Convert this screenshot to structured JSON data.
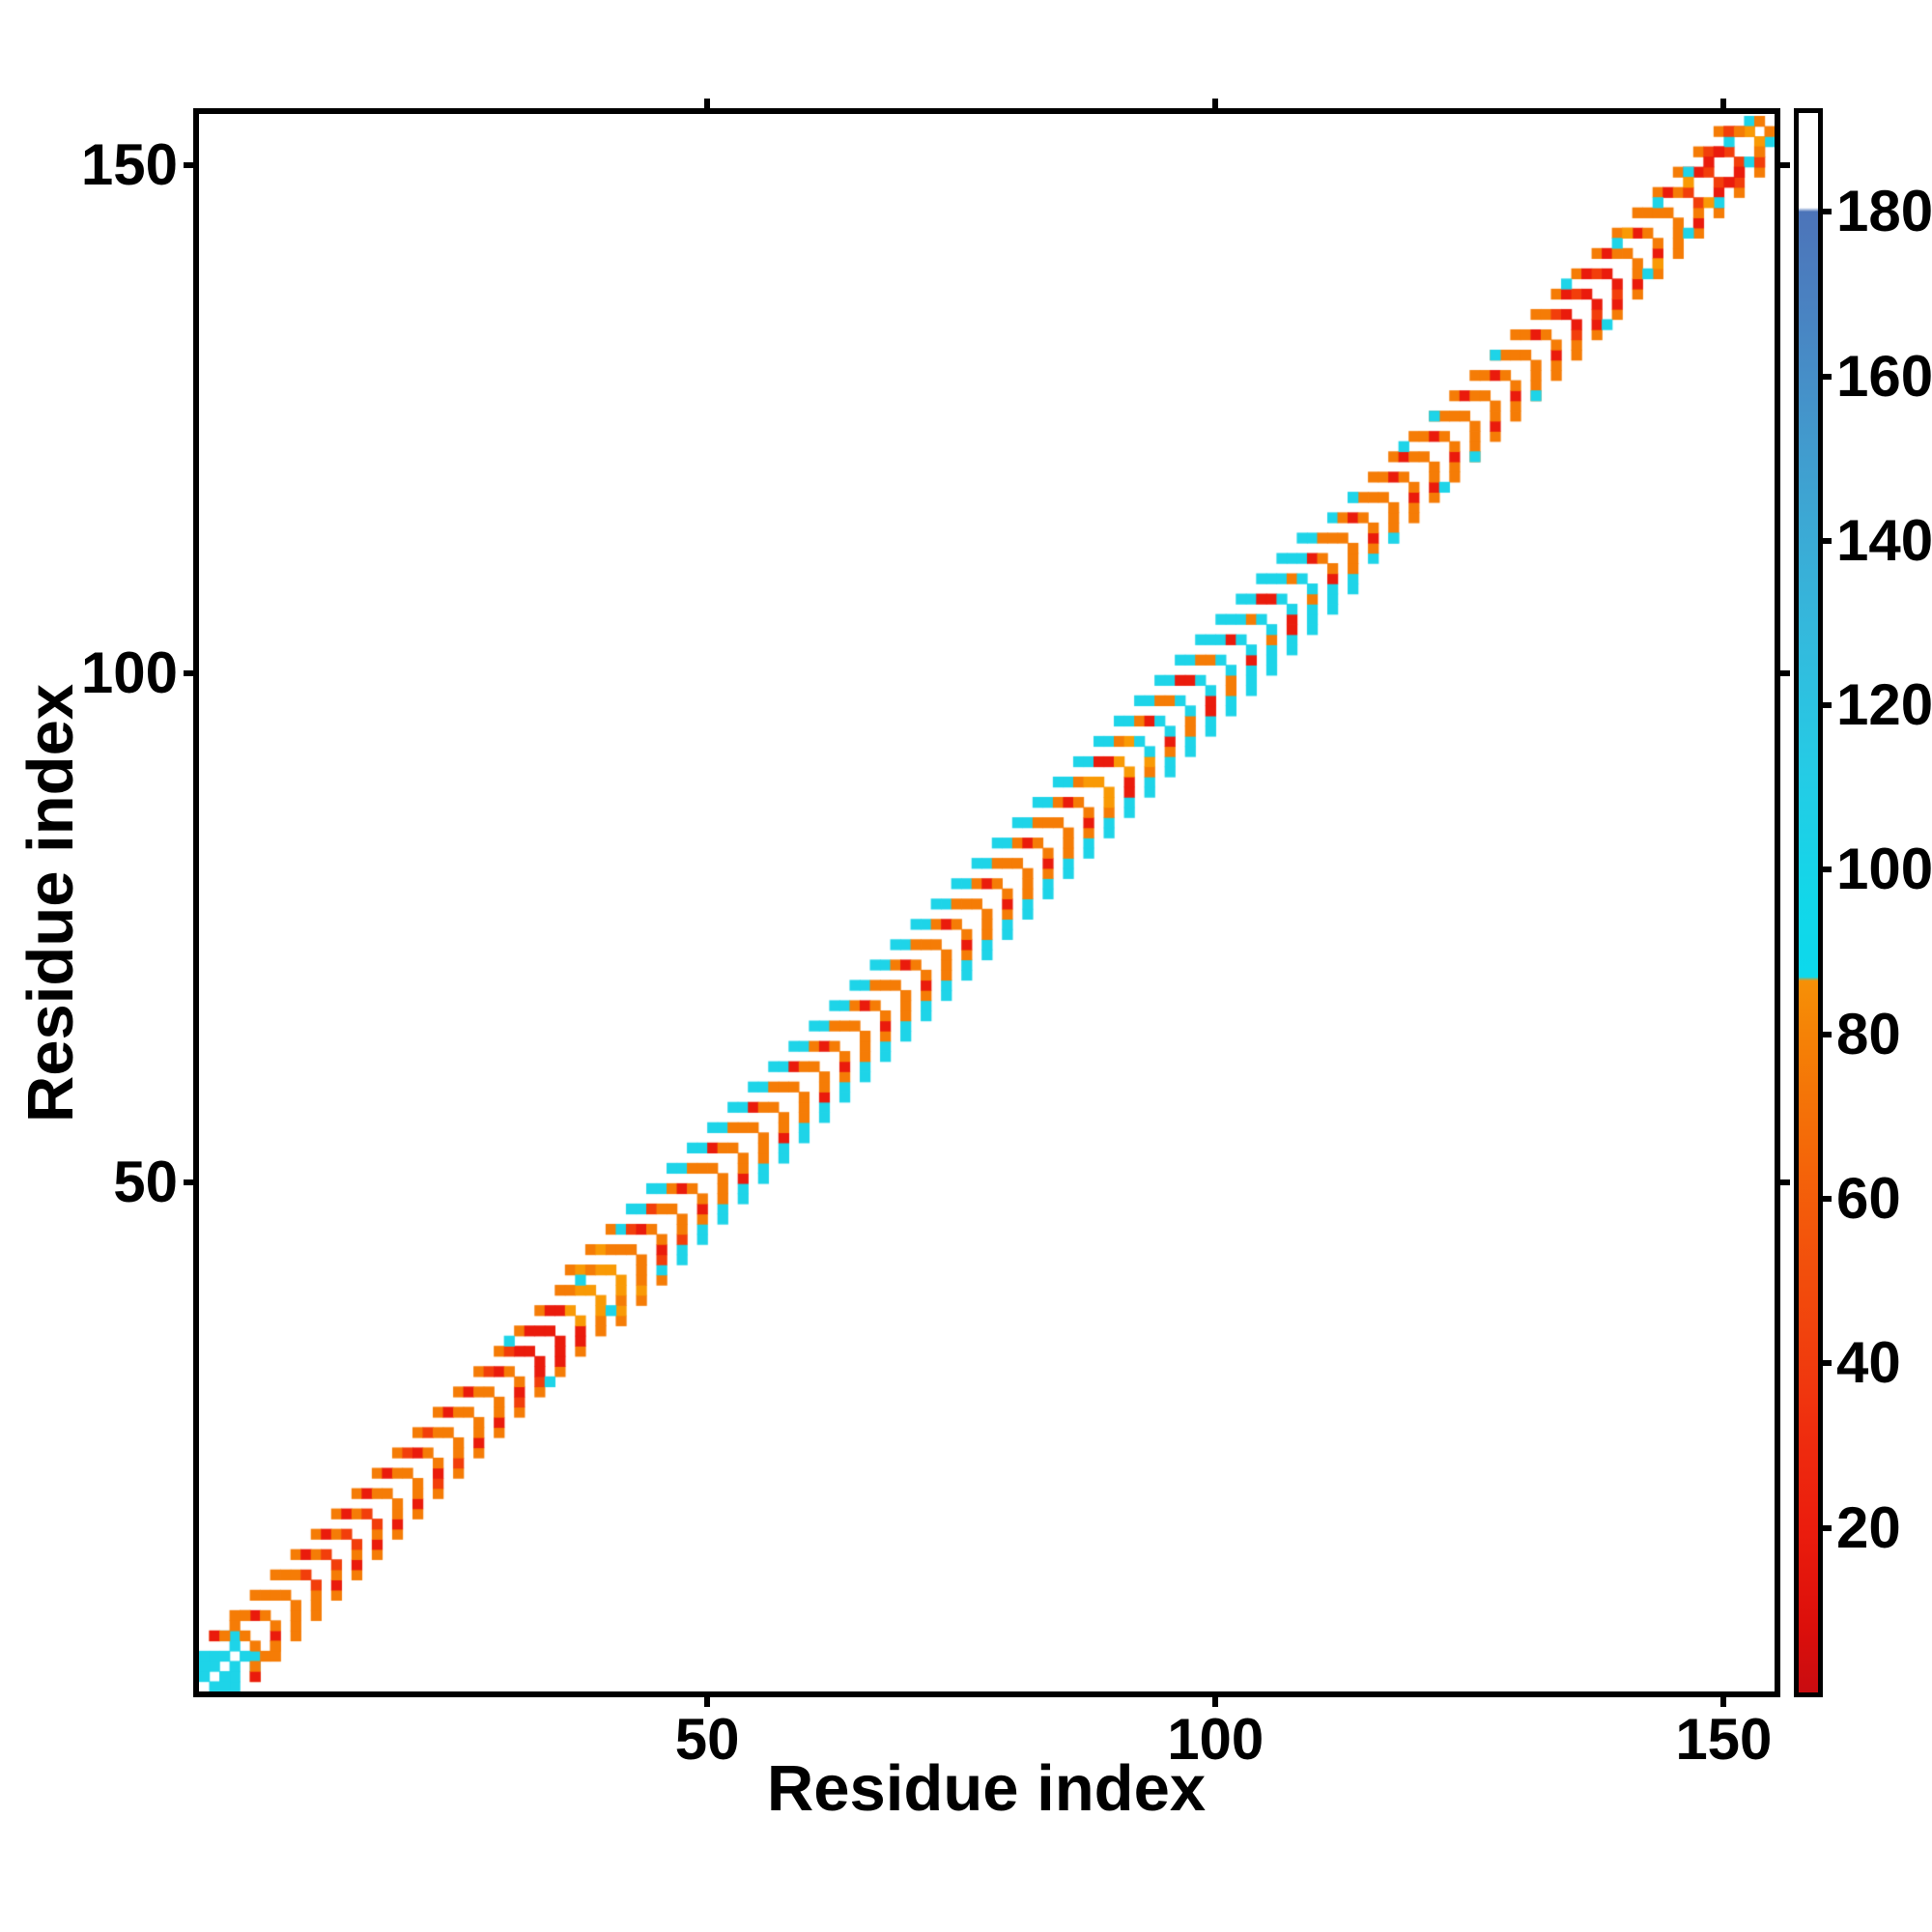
{
  "figure": {
    "x_axis_title": "Residue index",
    "y_axis_title": "Residue index",
    "background_color": "#ffffff",
    "spine_color": "#000000"
  },
  "axes": {
    "x": {
      "min": 0,
      "max": 155,
      "ticks": [
        50,
        100,
        150
      ]
    },
    "y": {
      "min": 0,
      "max": 155,
      "ticks": [
        50,
        100,
        150
      ]
    }
  },
  "colorbar": {
    "min": 0,
    "max": 192,
    "ticks": [
      20,
      40,
      60,
      80,
      100,
      120,
      140,
      160,
      180
    ],
    "stops": [
      [
        0,
        "#c90c10"
      ],
      [
        8,
        "#dc0f0b"
      ],
      [
        20,
        "#eb1d0d"
      ],
      [
        32,
        "#ef2e0e"
      ],
      [
        44,
        "#f1430d"
      ],
      [
        56,
        "#f3560b"
      ],
      [
        68,
        "#f46c08"
      ],
      [
        80,
        "#f58206"
      ],
      [
        86.5,
        "#f69007"
      ],
      [
        87,
        "#0cd9ec"
      ],
      [
        96,
        "#12d7e9"
      ],
      [
        112,
        "#25cbe5"
      ],
      [
        128,
        "#33badd"
      ],
      [
        144,
        "#3da6d3"
      ],
      [
        158,
        "#4591c9"
      ],
      [
        170,
        "#4a80c0"
      ],
      [
        180,
        "#4c74b9"
      ],
      [
        180.5,
        "#ffffff"
      ],
      [
        192,
        "#ffffff"
      ]
    ]
  },
  "chart_data": {
    "type": "heatmap",
    "title": "",
    "xlabel": "Residue index",
    "ylabel": "Residue index",
    "xlim": [
      0,
      155
    ],
    "ylim": [
      0,
      155
    ],
    "n_residues": 155,
    "description": "Symmetric residue-residue contact map: a woven near-diagonal band of cells (sequence separation 1-5) colored by contact value; white elsewhere. Checkerboard holes along the main diagonal.",
    "palette": {
      "red": "#ea1b0c",
      "redorange": "#f23e0b",
      "orange": "#f57c06",
      "amber": "#f99a05",
      "cyan": "#1ed4e8"
    },
    "band": {
      "segments": [
        {
          "f": 0,
          "t": 4,
          "L1": null,
          "L2": "cyan",
          "L3": "cyan",
          "L4": "orange",
          "L5": null
        },
        {
          "f": 4,
          "t": 9,
          "L1": "orange",
          "L2": "orange",
          "L3": "orange",
          "L4": "orange",
          "L5": null
        },
        {
          "f": 9,
          "t": 17,
          "L1": "redorange",
          "L2": "orange",
          "L3": "redorange",
          "L4": "orange",
          "L5": null
        },
        {
          "f": 17,
          "t": 31,
          "L1": "orange",
          "L2": "orange",
          "L3": "redorange",
          "L4": "orange",
          "L5": null
        },
        {
          "f": 31,
          "t": 36,
          "L1": "red",
          "L2": "redorange",
          "L3": "red",
          "L4": "orange",
          "L5": null
        },
        {
          "f": 36,
          "t": 41,
          "L1": "amber",
          "L2": "amber",
          "L3": "orange",
          "L4": "amber",
          "L5": "orange"
        },
        {
          "f": 41,
          "t": 46,
          "L1": "orange",
          "L2": "orange",
          "L3": "redorange",
          "L4": "cyan",
          "L5": "cyan"
        },
        {
          "f": 46,
          "t": 87,
          "L1": "orange",
          "L2": "orange",
          "L3": "orange",
          "L4": "cyan",
          "L5": "cyan"
        },
        {
          "f": 87,
          "t": 92,
          "L1": "amber",
          "L2": "amber",
          "L3": "orange",
          "L4": "cyan",
          "L5": "cyan"
        },
        {
          "f": 92,
          "t": 100,
          "L1": "cyan",
          "L2": "orange",
          "L3": "orange",
          "L4": "cyan",
          "L5": "cyan"
        },
        {
          "f": 100,
          "t": 110,
          "L1": "cyan",
          "L2": "orange",
          "L3": "cyan",
          "L4": "cyan",
          "L5": "cyan"
        },
        {
          "f": 110,
          "t": 115,
          "L1": "orange",
          "L2": "orange",
          "L3": "orange",
          "L4": "cyan",
          "L5": null
        },
        {
          "f": 115,
          "t": 126,
          "L1": "orange",
          "L2": "orange",
          "L3": "orange",
          "L4": "orange",
          "L5": null
        },
        {
          "f": 126,
          "t": 133,
          "L1": "orange",
          "L2": "orange",
          "L3": "orange",
          "L4": "orange",
          "L5": null
        },
        {
          "f": 133,
          "t": 139,
          "L1": "red",
          "L2": "redorange",
          "L3": "red",
          "L4": "orange",
          "L5": null
        },
        {
          "f": 139,
          "t": 146,
          "L1": "orange",
          "L2": "orange",
          "L3": "orange",
          "L4": "orange",
          "L5": null
        },
        {
          "f": 146,
          "t": 152,
          "L1": "redorange",
          "L2": "red",
          "L3": "redorange",
          "L4": "orange",
          "L5": null
        },
        {
          "f": 152,
          "t": 154,
          "L1": "orange",
          "L2": "orange",
          "L3": null,
          "L4": null,
          "L5": null
        }
      ],
      "red_accents": [
        5,
        10,
        12,
        14,
        16,
        18,
        21,
        24,
        26,
        29,
        31,
        33,
        35,
        43,
        47,
        50,
        54,
        58,
        61,
        65,
        69,
        73,
        77,
        81,
        85,
        88,
        89,
        93,
        96,
        97,
        101,
        104,
        105,
        109,
        113,
        117,
        118,
        121,
        124,
        127,
        131,
        134,
        136,
        141,
        144,
        147,
        149,
        151
      ],
      "extra_cells": [
        [
          0,
          1,
          "cyan"
        ],
        [
          1,
          2,
          "cyan"
        ],
        [
          2,
          3,
          "cyan"
        ],
        [
          3,
          4,
          "cyan"
        ],
        [
          0,
          2,
          "cyan"
        ],
        [
          1,
          5,
          "red"
        ],
        [
          2,
          5,
          "orange"
        ],
        [
          3,
          6,
          "orange"
        ],
        [
          4,
          7,
          "orange"
        ],
        [
          30,
          34,
          "cyan"
        ],
        [
          37,
          40,
          "cyan"
        ],
        [
          113,
          117,
          "cyan"
        ],
        [
          118,
          122,
          "cyan"
        ],
        [
          121,
          125,
          "cyan"
        ],
        [
          127,
          131,
          "cyan"
        ],
        [
          134,
          138,
          "cyan"
        ],
        [
          139,
          142,
          "cyan"
        ],
        [
          143,
          146,
          "cyan"
        ],
        [
          146,
          149,
          "cyan"
        ],
        [
          150,
          152,
          "cyan"
        ],
        [
          152,
          154,
          "cyan"
        ],
        [
          140,
          143,
          "amber"
        ],
        [
          146,
          148,
          "amber"
        ],
        [
          152,
          153,
          "amber"
        ],
        [
          148,
          150,
          "red"
        ],
        [
          149,
          151,
          "red"
        ],
        [
          150,
          153,
          "redorange"
        ],
        [
          153,
          154,
          "orange"
        ],
        [
          151,
          153,
          "orange"
        ]
      ]
    }
  }
}
